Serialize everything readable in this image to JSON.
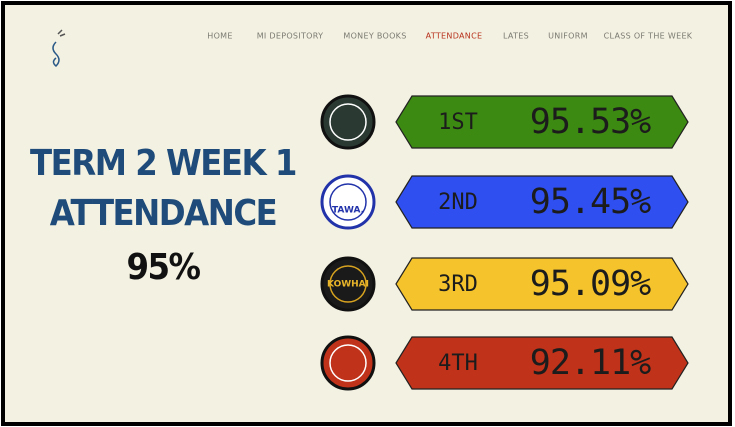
{
  "nav": {
    "items": [
      "HOME",
      "MI DEPOSITORY",
      "MONEY BOOKS",
      "ATTENDANCE",
      "LATES",
      "UNIFORM",
      "CLASS OF THE WEEK"
    ],
    "active": 3
  },
  "heading": {
    "line1": "TERM 2 WEEK 1",
    "line2": "ATTENDANCE",
    "total": "95%"
  },
  "rows": [
    {
      "rank": "1ST",
      "percent": "95.53%",
      "color": "#3d8a12"
    },
    {
      "rank": "2ND",
      "percent": "95.45%",
      "color": "#2f4ff0",
      "logo_text": "TAWA."
    },
    {
      "rank": "3RD",
      "percent": "95.09%",
      "color": "#f5c42c",
      "logo_text": "KOWHAI"
    },
    {
      "rank": "4TH",
      "percent": "92.11%",
      "color": "#c0321a"
    }
  ]
}
